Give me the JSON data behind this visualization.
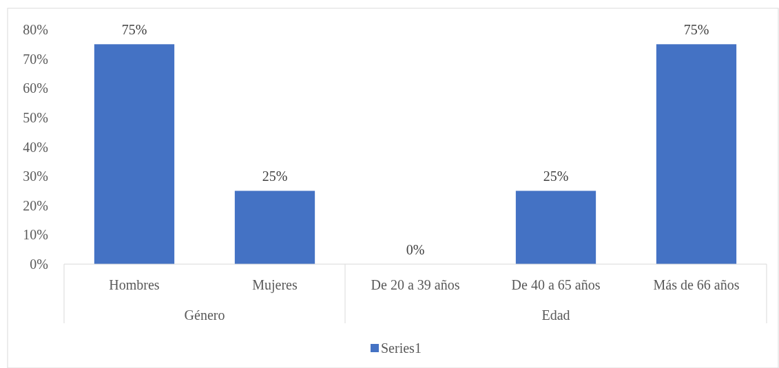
{
  "chart_data": {
    "type": "bar",
    "categories": [
      "Hombres",
      "Mujeres",
      "De 20 a 39 años",
      "De 40 a 65 años",
      "Más de 66 años"
    ],
    "series": [
      {
        "name": "Series1",
        "color": "#4472c4",
        "values": [
          75,
          25,
          0,
          25,
          75
        ]
      }
    ],
    "ylim": [
      0,
      80
    ],
    "yticks": [
      {
        "value": 0,
        "label": "0%"
      },
      {
        "value": 10,
        "label": "10%"
      },
      {
        "value": 20,
        "label": "20%"
      },
      {
        "value": 30,
        "label": "30%"
      },
      {
        "value": 40,
        "label": "40%"
      },
      {
        "value": 50,
        "label": "50%"
      },
      {
        "value": 60,
        "label": "60%"
      },
      {
        "value": 70,
        "label": "70%"
      },
      {
        "value": 80,
        "label": "80%"
      }
    ],
    "value_labels": [
      "75%",
      "25%",
      "0%",
      "25%",
      "75%"
    ],
    "annotations": [
      "Género",
      "Edad"
    ],
    "legend": "bottom",
    "grid": false
  }
}
